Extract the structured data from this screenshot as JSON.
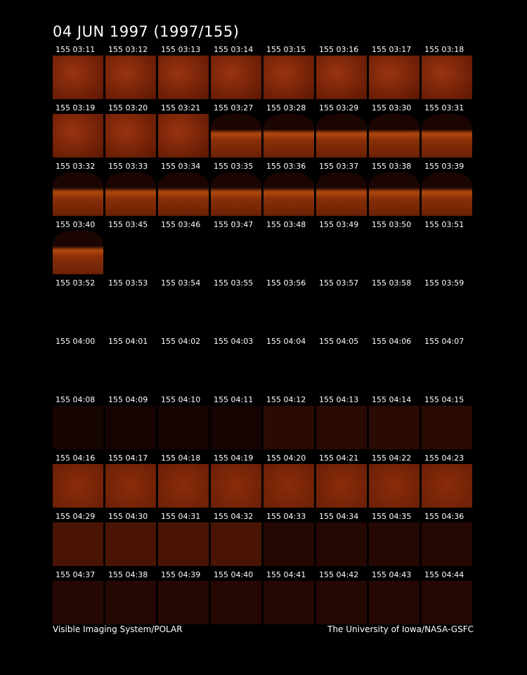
{
  "header": {
    "title": "04 JUN 1997  (1997/155)"
  },
  "frames": [
    "155 03:11",
    "155 03:12",
    "155 03:13",
    "155 03:14",
    "155 03:15",
    "155 03:16",
    "155 03:17",
    "155 03:18",
    "155 03:19",
    "155 03:20",
    "155 03:21",
    "155 03:27",
    "155 03:28",
    "155 03:29",
    "155 03:30",
    "155 03:31",
    "155 03:32",
    "155 03:33",
    "155 03:34",
    "155 03:35",
    "155 03:36",
    "155 03:37",
    "155 03:38",
    "155 03:39",
    "155 03:40",
    "155 03:45",
    "155 03:46",
    "155 03:47",
    "155 03:48",
    "155 03:49",
    "155 03:50",
    "155 03:51",
    "155 03:52",
    "155 03:53",
    "155 03:54",
    "155 03:55",
    "155 03:56",
    "155 03:57",
    "155 03:58",
    "155 03:59",
    "155 04:00",
    "155 04:01",
    "155 04:02",
    "155 04:03",
    "155 04:04",
    "155 04:05",
    "155 04:06",
    "155 04:07",
    "155 04:08",
    "155 04:09",
    "155 04:10",
    "155 04:11",
    "155 04:12",
    "155 04:13",
    "155 04:14",
    "155 04:15",
    "155 04:16",
    "155 04:17",
    "155 04:18",
    "155 04:19",
    "155 04:20",
    "155 04:21",
    "155 04:22",
    "155 04:23",
    "155 04:29",
    "155 04:30",
    "155 04:31",
    "155 04:32",
    "155 04:33",
    "155 04:34",
    "155 04:35",
    "155 04:36",
    "155 04:37",
    "155 04:38",
    "155 04:39",
    "155 04:40",
    "155 04:41",
    "155 04:42",
    "155 04:43",
    "155 04:44"
  ],
  "footer": {
    "left": "Visible Imaging System/POLAR",
    "right": "The University of Iowa/NASA-GSFC"
  }
}
